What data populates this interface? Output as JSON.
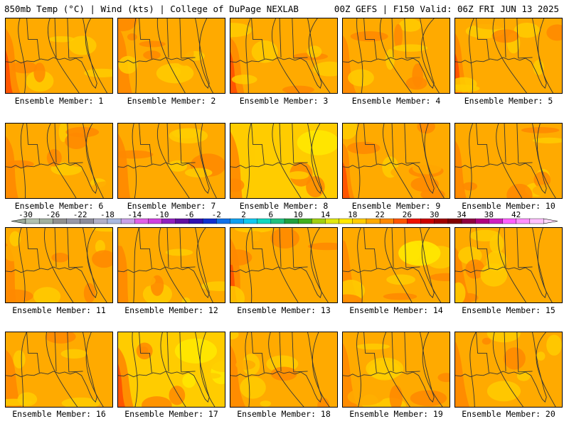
{
  "header": {
    "left_title": "850mb Temp (°C) | Wind (kts) | College of DuPage NEXLAB",
    "right_title": "00Z GEFS | F150 Valid: 06Z FRI JUN 13 2025"
  },
  "panels": [
    {
      "label": "Ensemble Member: 1",
      "tone": "orange"
    },
    {
      "label": "Ensemble Member: 2",
      "tone": "orange"
    },
    {
      "label": "Ensemble Member: 3",
      "tone": "warm"
    },
    {
      "label": "Ensemble Member: 4",
      "tone": "orange"
    },
    {
      "label": "Ensemble Member: 5",
      "tone": "orange"
    },
    {
      "label": "Ensemble Member: 6",
      "tone": "orange"
    },
    {
      "label": "Ensemble Member: 7",
      "tone": "orange"
    },
    {
      "label": "Ensemble Member: 8",
      "tone": "yellow"
    },
    {
      "label": "Ensemble Member: 9",
      "tone": "orange"
    },
    {
      "label": "Ensemble Member: 10",
      "tone": "orange"
    },
    {
      "label": "Ensemble Member: 11",
      "tone": "orange"
    },
    {
      "label": "Ensemble Member: 12",
      "tone": "orange"
    },
    {
      "label": "Ensemble Member: 13",
      "tone": "orange"
    },
    {
      "label": "Ensemble Member: 14",
      "tone": "orange"
    },
    {
      "label": "Ensemble Member: 15",
      "tone": "orange"
    },
    {
      "label": "Ensemble Member: 16",
      "tone": "orange"
    },
    {
      "label": "Ensemble Member: 17",
      "tone": "yellow"
    },
    {
      "label": "Ensemble Member: 18",
      "tone": "orange"
    },
    {
      "label": "Ensemble Member: 19",
      "tone": "orange"
    },
    {
      "label": "Ensemble Member: 20",
      "tone": "orange"
    }
  ],
  "colorbar": {
    "ticks": [
      "-30",
      "-26",
      "-22",
      "-18",
      "-14",
      "-10",
      "-6",
      "-2",
      "2",
      "6",
      "10",
      "14",
      "18",
      "22",
      "26",
      "30",
      "34",
      "38",
      "42"
    ],
    "colors": [
      "#b0c0b0",
      "#a0b0a0",
      "#909090",
      "#9898a8",
      "#8c8c9c",
      "#b0b0c8",
      "#a8b8e0",
      "#c8a0e8",
      "#e060e8",
      "#d040e0",
      "#9020c0",
      "#6010a0",
      "#3010b0",
      "#1030d0",
      "#1070e8",
      "#10a0f0",
      "#10c8f0",
      "#10d8c0",
      "#20c080",
      "#20a040",
      "#40b020",
      "#a0d010",
      "#e0e810",
      "#ffe800",
      "#ffcc00",
      "#ffaa00",
      "#ff8800",
      "#ff5500",
      "#ee1100",
      "#cc0000",
      "#a00000",
      "#800000",
      "#900040",
      "#b00080",
      "#d020c0",
      "#ff60ff",
      "#ff90ff",
      "#ffc0ff"
    ],
    "arrow_left": "#9aaa9a",
    "arrow_right": "#ffd8ff"
  },
  "colors": {
    "orange": "#ffaa00",
    "light_orange": "#ffcc00",
    "dark_orange": "#ff8800",
    "red_orange": "#ff5500",
    "yellow": "#ffe800",
    "lines": "#333333"
  }
}
